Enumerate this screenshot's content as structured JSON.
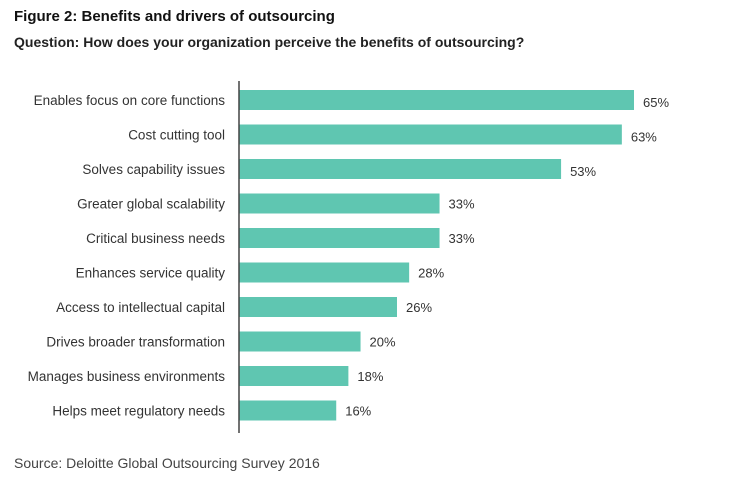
{
  "figure": {
    "title": "Figure 2: Benefits and drivers of outsourcing",
    "subtitle": "Question: How does your organization perceive the benefits of outsourcing?",
    "source": "Source: Deloitte Global Outsourcing Survey 2016"
  },
  "colors": {
    "bar": "#5fc6b1",
    "axis": "#444444"
  },
  "chart_data": {
    "type": "bar",
    "orientation": "horizontal",
    "categories": [
      "Enables focus on core functions",
      "Cost cutting tool",
      "Solves capability issues",
      "Greater global scalability",
      "Critical business needs",
      "Enhances service quality",
      "Access to intellectual capital",
      "Drives broader transformation",
      "Manages business environments",
      "Helps meet regulatory needs"
    ],
    "values": [
      65,
      63,
      53,
      33,
      33,
      28,
      26,
      20,
      18,
      16
    ],
    "value_labels": [
      "65%",
      "63%",
      "53%",
      "33%",
      "33%",
      "28%",
      "26%",
      "20%",
      "18%",
      "16%"
    ],
    "unit": "%",
    "xlim": [
      0,
      65
    ],
    "grid": false,
    "legend": "none"
  }
}
